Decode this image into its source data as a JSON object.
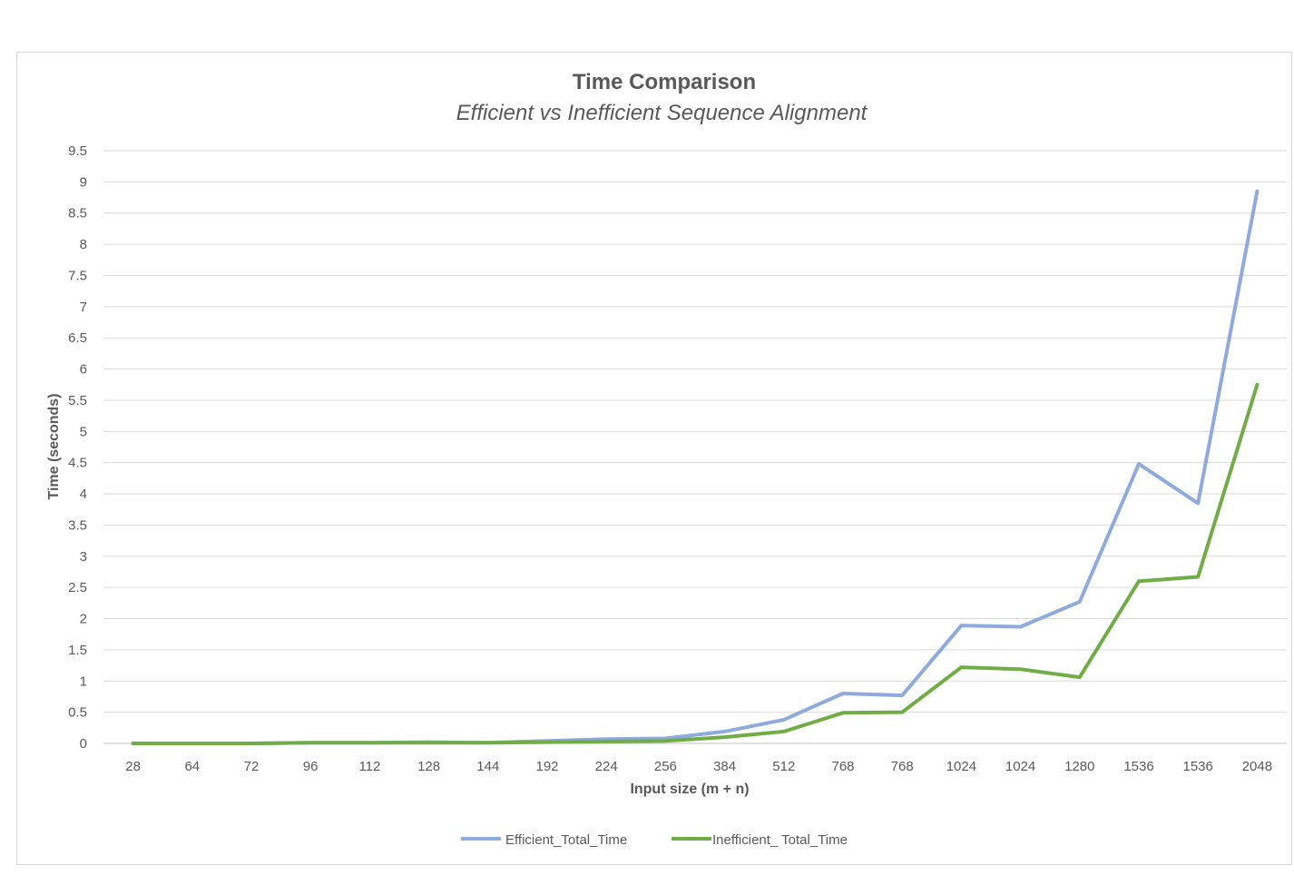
{
  "chart_data": {
    "type": "line",
    "title": "Time Comparison",
    "subtitle": "Efficient vs Inefficient Sequence Alignment",
    "xlabel": "Input size (m + n)",
    "ylabel": "Time (seconds)",
    "ylim": [
      0,
      9.5
    ],
    "ytick_step": 0.5,
    "yticks": [
      "0",
      "0.5",
      "1",
      "1.5",
      "2",
      "2.5",
      "3",
      "3.5",
      "4",
      "4.5",
      "5",
      "5.5",
      "6",
      "6.5",
      "7",
      "7.5",
      "8",
      "8.5",
      "9",
      "9.5"
    ],
    "grid": true,
    "legend_position": "bottom",
    "categories": [
      "28",
      "64",
      "72",
      "96",
      "112",
      "128",
      "144",
      "192",
      "224",
      "256",
      "384",
      "512",
      "768",
      "768",
      "1024",
      "1024",
      "1280",
      "1536",
      "1536",
      "2048"
    ],
    "series": [
      {
        "name": "Efficient_Total_Time",
        "color": "#8faadc",
        "values": [
          0.0,
          0.0,
          0.0,
          0.01,
          0.01,
          0.02,
          0.01,
          0.04,
          0.07,
          0.08,
          0.19,
          0.38,
          0.8,
          0.77,
          1.89,
          1.87,
          2.27,
          4.48,
          3.85,
          8.85
        ]
      },
      {
        "name": "Inefficient_ Total_Time",
        "color": "#70ad47",
        "values": [
          0.0,
          0.0,
          0.0,
          0.01,
          0.01,
          0.01,
          0.01,
          0.02,
          0.03,
          0.04,
          0.1,
          0.19,
          0.49,
          0.5,
          1.22,
          1.19,
          1.06,
          2.6,
          2.67,
          5.75
        ]
      }
    ]
  }
}
